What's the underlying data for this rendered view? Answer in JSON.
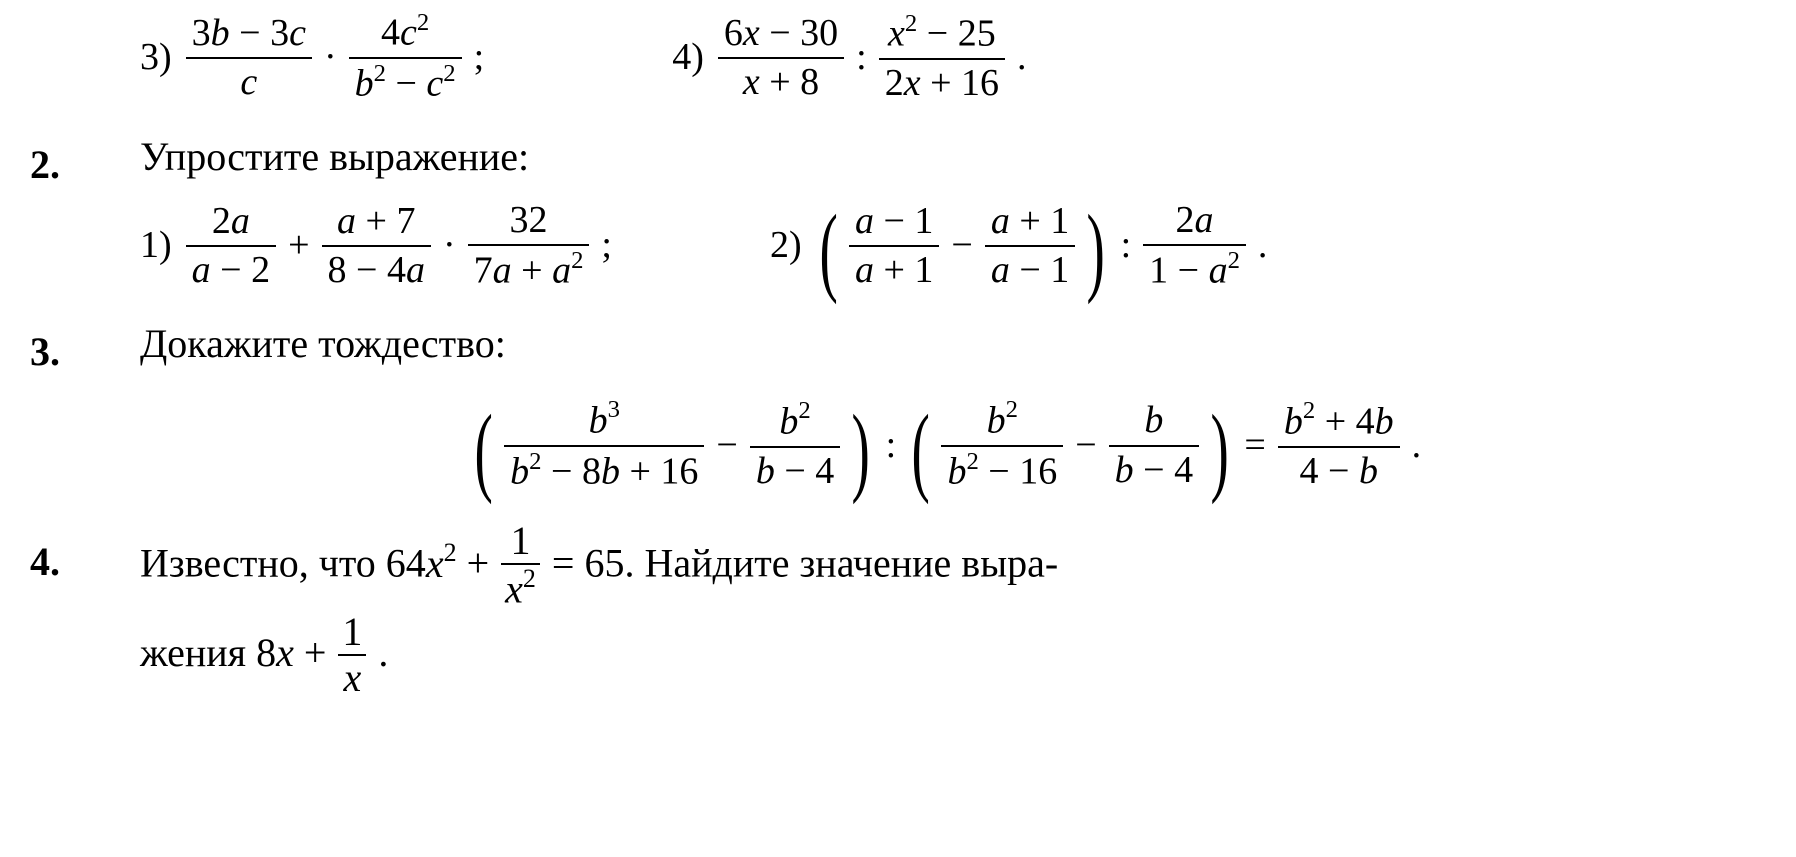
{
  "line0": {
    "item3": {
      "label": "3)",
      "f1": {
        "top_html": "3<i>b</i> − 3<i>c</i>",
        "bot_html": "<i>c</i>"
      },
      "op1": "·",
      "f2": {
        "top_html": "4<i>c</i><span class='sup'>2</span>",
        "bot_html": "<i>b</i><span class='sup'>2</span> − <i>c</i><span class='sup'>2</span>"
      },
      "tail": ";"
    },
    "item4": {
      "label": "4)",
      "f1": {
        "top_html": "6<i>x</i> − 30",
        "bot_html": "<i>x</i> + 8"
      },
      "op1": ":",
      "f2": {
        "top_html": "<i>x</i><span class='sup'>2</span> − 25",
        "bot_html": "2<i>x</i> + 16"
      },
      "tail": "."
    }
  },
  "p2": {
    "number": "2.",
    "title": "Упростите выражение:",
    "item1": {
      "label": "1)",
      "f1": {
        "top_html": "2<i>a</i>",
        "bot_html": "<i>a</i> − 2"
      },
      "op1": "+",
      "f2": {
        "top_html": "<i>a</i> + 7",
        "bot_html": "8 − 4<i>a</i>"
      },
      "op2": "·",
      "f3": {
        "top_html": "32",
        "bot_html": "7<i>a</i> + <i>a</i><span class='sup'>2</span>"
      },
      "tail": ";"
    },
    "item2": {
      "label": "2)",
      "lp": "(",
      "f1": {
        "top_html": "<i>a</i> − 1",
        "bot_html": "<i>a</i> + 1"
      },
      "op1": "−",
      "f2": {
        "top_html": "<i>a</i> + 1",
        "bot_html": "<i>a</i> − 1"
      },
      "rp": ")",
      "op2": ":",
      "f3": {
        "top_html": "2<i>a</i>",
        "bot_html": "1 − <i>a</i><span class='sup'>2</span>"
      },
      "tail": "."
    }
  },
  "p3": {
    "number": "3.",
    "title": "Докажите тождество:",
    "expr": {
      "lp1": "(",
      "f1": {
        "top_html": "<i>b</i><span class='sup'>3</span>",
        "bot_html": "<i>b</i><span class='sup'>2</span> − 8<i>b</i> + 16"
      },
      "op1": "−",
      "f2": {
        "top_html": "<i>b</i><span class='sup'>2</span>",
        "bot_html": "<i>b</i> − 4"
      },
      "rp1": ")",
      "op2": ":",
      "lp2": "(",
      "f3": {
        "top_html": "<i>b</i><span class='sup'>2</span>",
        "bot_html": "<i>b</i><span class='sup'>2</span> − 16"
      },
      "op3": "−",
      "f4": {
        "top_html": "<i>b</i>",
        "bot_html": "<i>b</i> − 4"
      },
      "rp2": ")",
      "op4": "=",
      "f5": {
        "top_html": "<i>b</i><span class='sup'>2</span> + 4<i>b</i>",
        "bot_html": "4 − <i>b</i>"
      },
      "tail": "."
    }
  },
  "p4": {
    "number": "4.",
    "text_pre": "Известно, что  64",
    "var1_html": "<i>x</i><span class='sup'>2</span>",
    "plus": " + ",
    "frac1": {
      "top_html": "1",
      "bot_html": "<i>x</i><span class='sup'>2</span>"
    },
    "eq65": " = 65. ",
    "text_mid": "Найдите значение выра-",
    "text_line2a": "жения  8",
    "var2_html": "<i>x</i>",
    "plus2": " + ",
    "frac2": {
      "top_html": "1",
      "bot_html": "<i>x</i>"
    },
    "tail": " ."
  }
}
